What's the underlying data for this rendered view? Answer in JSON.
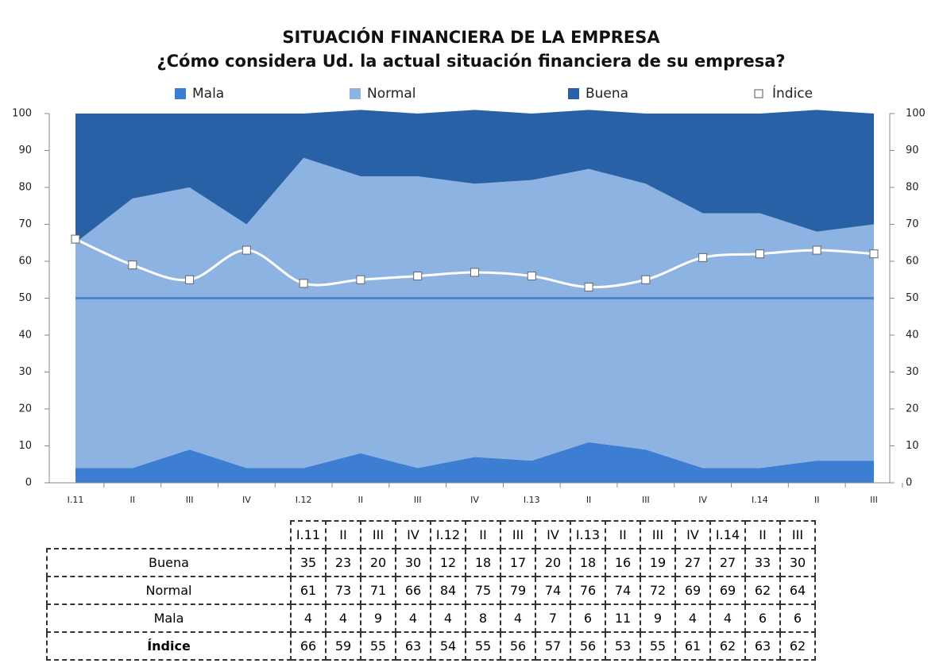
{
  "chart_data": {
    "type": "stacked_area",
    "title": "SITUACIÓN FINANCIERA DE LA EMPRESA",
    "subtitle": "¿Cómo considera Ud. la actual situación financiera de su empresa?",
    "categories": [
      "I.11",
      "II",
      "III",
      "IV",
      "I.12",
      "II",
      "III",
      "IV",
      "I.13",
      "II",
      "III",
      "IV",
      "I.14",
      "II",
      "III"
    ],
    "series": [
      {
        "name": "Mala",
        "color": "#3d7ed3",
        "values": [
          4,
          4,
          9,
          4,
          4,
          8,
          4,
          7,
          6,
          11,
          9,
          4,
          4,
          6,
          6
        ]
      },
      {
        "name": "Normal",
        "color": "#8db3e2",
        "values": [
          61,
          73,
          71,
          66,
          84,
          75,
          79,
          74,
          76,
          74,
          72,
          69,
          69,
          62,
          64
        ]
      },
      {
        "name": "Buena",
        "color": "#2961a6",
        "values": [
          35,
          23,
          20,
          30,
          12,
          18,
          17,
          20,
          18,
          16,
          19,
          27,
          27,
          33,
          30
        ]
      },
      {
        "name": "Índice",
        "type": "line",
        "color": "#ffffff",
        "values": [
          66,
          59,
          55,
          63,
          54,
          55,
          56,
          57,
          56,
          53,
          55,
          61,
          62,
          63,
          62
        ]
      }
    ],
    "reference_line": 50,
    "ylim": [
      0,
      100
    ],
    "yticks": [
      0,
      10,
      20,
      30,
      40,
      50,
      60,
      70,
      80,
      90,
      100
    ],
    "y2lim": [
      0,
      100
    ],
    "y2ticks": [
      0,
      10,
      20,
      30,
      40,
      50,
      60,
      70,
      80,
      90,
      100
    ],
    "table_rows": [
      2,
      1,
      0,
      3
    ]
  }
}
